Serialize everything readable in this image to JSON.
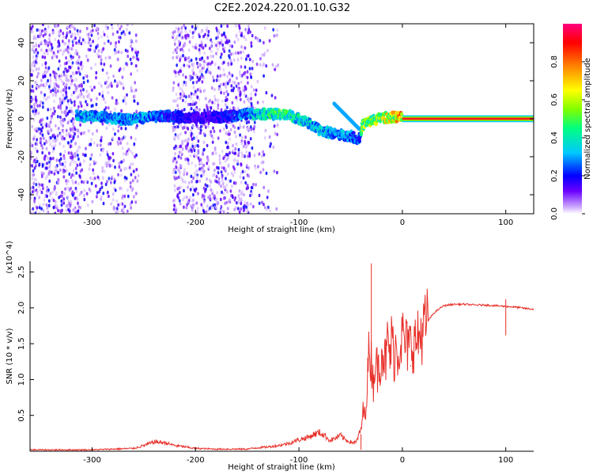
{
  "title": "C2E2.2024.220.01.10.G32",
  "chart_data": [
    {
      "type": "heatmap",
      "xlabel": "Height of straight line (km)",
      "ylabel": "Frequency (Hz)",
      "xlim": [
        -360,
        127
      ],
      "ylim": [
        -50,
        50
      ],
      "xticks": [
        -300,
        -200,
        -100,
        0,
        100
      ],
      "yticks": [
        -40,
        -20,
        0,
        20,
        40
      ],
      "colorbar": {
        "label": "Normalized spectral amplitude",
        "range": [
          0,
          1
        ],
        "ticks": [
          "0.0",
          "0.2",
          "0.4",
          "0.6",
          "0.8"
        ],
        "colors": [
          "#ffffff",
          "#c8a0ff",
          "#6a00ff",
          "#0000ff",
          "#00c8ff",
          "#00ff80",
          "#80ff00",
          "#ffff00",
          "#ff8000",
          "#ff0000",
          "#ff0080"
        ]
      },
      "ridge": [
        {
          "x": -312,
          "y": 1.5,
          "v": 0.35
        },
        {
          "x": -290,
          "y": 1.0,
          "v": 0.3
        },
        {
          "x": -270,
          "y": -0.5,
          "v": 0.3
        },
        {
          "x": -250,
          "y": 0.5,
          "v": 0.3
        },
        {
          "x": -228,
          "y": 1.5,
          "v": 0.25
        },
        {
          "x": -200,
          "y": 0.5,
          "v": 0.15
        },
        {
          "x": -170,
          "y": 1.0,
          "v": 0.2
        },
        {
          "x": -150,
          "y": 2.5,
          "v": 0.3
        },
        {
          "x": -130,
          "y": 2.5,
          "v": 0.45
        },
        {
          "x": -110,
          "y": 2.0,
          "v": 0.45
        },
        {
          "x": -95,
          "y": -1.0,
          "v": 0.35
        },
        {
          "x": -80,
          "y": -6.0,
          "v": 0.35
        },
        {
          "x": -65,
          "y": -8.0,
          "v": 0.3
        },
        {
          "x": -50,
          "y": -9.0,
          "v": 0.3
        },
        {
          "x": -42,
          "y": -11.0,
          "v": 0.25
        },
        {
          "x": -38,
          "y": -3.0,
          "v": 0.55
        },
        {
          "x": -30,
          "y": -1.0,
          "v": 0.55
        },
        {
          "x": -20,
          "y": 0.5,
          "v": 0.6
        },
        {
          "x": -5,
          "y": 1.0,
          "v": 0.7
        },
        {
          "x": 5,
          "y": 0.0,
          "v": 0.9
        },
        {
          "x": 127,
          "y": 0.0,
          "v": 0.9
        }
      ]
    },
    {
      "type": "line",
      "xlabel": "Height of straight line (km)",
      "ylabel": "SNR (10 * v/v)",
      "multiplier": "(x10^4)",
      "xlim": [
        -360,
        127
      ],
      "ylim": [
        0,
        2.65
      ],
      "xticks": [
        -300,
        -200,
        -100,
        0,
        100
      ],
      "yticks": [
        0.5,
        1.0,
        1.5,
        2.0,
        2.5
      ],
      "color": "#e8302a",
      "x": [
        -360,
        -340,
        -320,
        -300,
        -280,
        -260,
        -250,
        -240,
        -230,
        -220,
        -210,
        -200,
        -180,
        -160,
        -150,
        -140,
        -130,
        -120,
        -110,
        -100,
        -95,
        -90,
        -85,
        -80,
        -75,
        -70,
        -65,
        -60,
        -55,
        -50,
        -45,
        -40,
        -38,
        -36,
        -34,
        -32,
        -30,
        -28,
        -26,
        -24,
        -22,
        -20,
        -18,
        -16,
        -14,
        -12,
        -10,
        -8,
        -6,
        -4,
        -2,
        0,
        5,
        10,
        15,
        20,
        25,
        30,
        35,
        40,
        50,
        60,
        70,
        80,
        90,
        100,
        110,
        120,
        127
      ],
      "y": [
        0.02,
        0.02,
        0.02,
        0.02,
        0.03,
        0.04,
        0.08,
        0.13,
        0.12,
        0.08,
        0.06,
        0.04,
        0.03,
        0.03,
        0.03,
        0.05,
        0.06,
        0.08,
        0.11,
        0.16,
        0.18,
        0.2,
        0.24,
        0.26,
        0.22,
        0.15,
        0.18,
        0.22,
        0.16,
        0.13,
        0.12,
        0.3,
        0.55,
        0.5,
        0.95,
        1.45,
        1.25,
        0.95,
        1.35,
        1.1,
        1.2,
        1.45,
        1.35,
        1.25,
        1.55,
        1.3,
        1.6,
        1.3,
        1.5,
        1.35,
        1.55,
        1.6,
        1.45,
        1.5,
        1.55,
        1.7,
        1.82,
        1.92,
        1.98,
        2.03,
        2.05,
        2.05,
        2.04,
        2.04,
        2.03,
        2.02,
        2.01,
        1.99,
        1.98
      ]
    }
  ]
}
